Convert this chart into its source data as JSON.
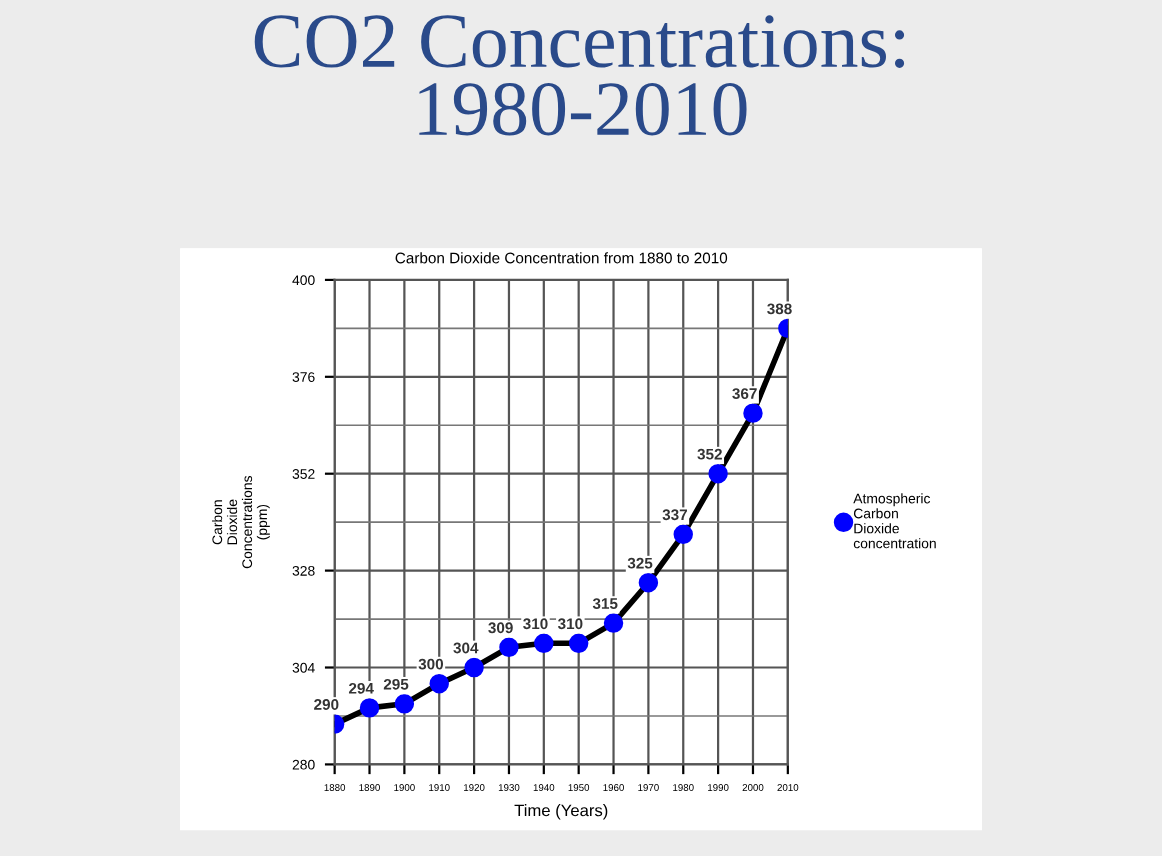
{
  "chart_data": {
    "type": "line",
    "title": "CO2 Concentrations:\n1980-2010",
    "subtitle": "Carbon Dioxide Concentration from 1880 to 2010",
    "xlabel": "Time (Years)",
    "ylabel": "Carbon\nDioxide\nConcentrations\n(ppm)",
    "x": [
      1880,
      1890,
      1900,
      1910,
      1920,
      1930,
      1940,
      1950,
      1960,
      1970,
      1980,
      1990,
      2000,
      2010
    ],
    "series": [
      {
        "name": "Atmospheric\nCarbon\nDioxide\nconcentration",
        "color": "#0000ff",
        "values": [
          290,
          294,
          295,
          300,
          304,
          309,
          310,
          310,
          315,
          325,
          337,
          352,
          367,
          388
        ]
      }
    ],
    "xlim": [
      1880,
      2010
    ],
    "xticks": [
      1880,
      1890,
      1900,
      1910,
      1920,
      1930,
      1940,
      1950,
      1960,
      1970,
      1980,
      1990,
      2000,
      2010
    ],
    "ylim": [
      280,
      400
    ],
    "yticks": [
      280,
      304,
      328,
      352,
      376,
      400
    ],
    "grid": true,
    "legend": "right",
    "marker": "circle",
    "line_style": "solid",
    "data_labels": true
  }
}
